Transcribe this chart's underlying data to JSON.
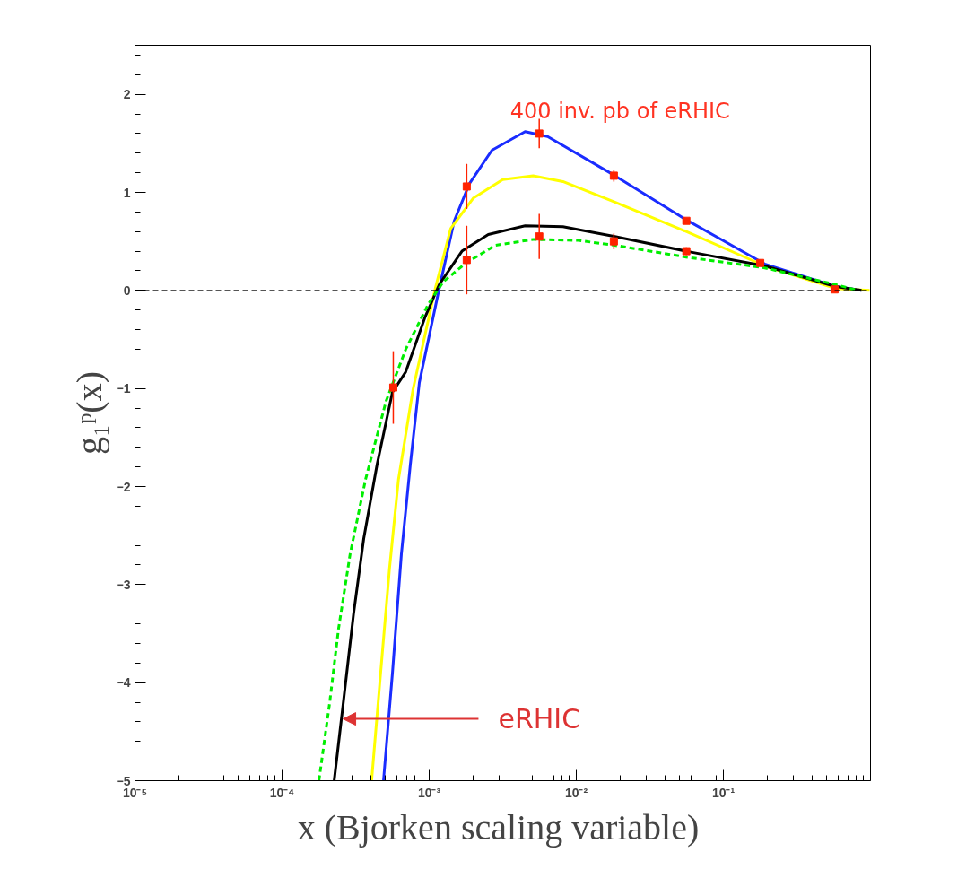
{
  "chart_data": {
    "type": "line",
    "log": "x",
    "xlabel": "x  (Bjorken scaling variable)",
    "ylabel": "g₁ᵖ(x)",
    "xlim": [
      1e-05,
      1
    ],
    "ylim": [
      -5,
      2.5
    ],
    "xticks": [
      {
        "value": 1e-05,
        "label": "10⁻⁵"
      },
      {
        "value": 0.0001,
        "label": "10⁻⁴"
      },
      {
        "value": 0.001,
        "label": "10⁻³"
      },
      {
        "value": 0.01,
        "label": "10⁻²"
      },
      {
        "value": 0.1,
        "label": "10⁻¹"
      }
    ],
    "yticks": [
      -5,
      -4,
      -3,
      -2,
      -1,
      0,
      1,
      2
    ],
    "grid": false,
    "ref_lines": [
      {
        "axis": "y",
        "value": 0,
        "label": null,
        "color": "#000000",
        "line_style": "dashed"
      }
    ],
    "annotations": [
      "400 inv. pb of eRHIC",
      {
        "text": "eRHIC",
        "x": 0.00026,
        "y": -4.37
      }
    ],
    "series": [
      {
        "color": "#1a2cff",
        "line_style": "solid",
        "x": [
          0.000489,
          0.000562,
          0.000647,
          0.000745,
          0.000857,
          0.00117,
          0.00148,
          0.00188,
          0.00267,
          0.00449,
          0.00638,
          0.0183,
          0.0559,
          0.191,
          0.578,
          0.869
        ],
        "values": [
          -5.0,
          -3.91,
          -2.69,
          -1.77,
          -0.94,
          0.02,
          0.71,
          1.09,
          1.43,
          1.62,
          1.57,
          1.17,
          0.72,
          0.27,
          0.04,
          0.0
        ]
      },
      {
        "color": "#ffff00",
        "line_style": "solid",
        "x": [
          0.000406,
          0.000467,
          0.000537,
          0.000618,
          0.000776,
          0.0011,
          0.0014,
          0.00199,
          0.00316,
          0.00509,
          0.00811,
          0.0183,
          0.0559,
          0.191,
          0.578,
          0.986
        ],
        "values": [
          -5.0,
          -3.91,
          -2.84,
          -1.93,
          -1.01,
          0.02,
          0.63,
          0.94,
          1.13,
          1.17,
          1.11,
          0.9,
          0.6,
          0.25,
          0.02,
          0.0
        ]
      },
      {
        "color": "#000000",
        "line_style": "solid",
        "x": [
          0.000226,
          0.00026,
          0.000306,
          0.000359,
          0.000443,
          0.000562,
          0.000693,
          0.000933,
          0.00117,
          0.00167,
          0.00252,
          0.00449,
          0.00811,
          0.0183,
          0.0559,
          0.191,
          0.578,
          0.869
        ],
        "values": [
          -5.0,
          -4.22,
          -3.3,
          -2.53,
          -1.77,
          -1.04,
          -0.83,
          -0.28,
          0.06,
          0.4,
          0.57,
          0.66,
          0.65,
          0.55,
          0.4,
          0.25,
          0.04,
          0.0
        ]
      },
      {
        "color": "#00ee00",
        "line_style": "dashed",
        "x": [
          0.000178,
          0.00021,
          0.000242,
          0.00029,
          0.000369,
          0.000509,
          0.000693,
          0.000986,
          0.00125,
          0.00178,
          0.00282,
          0.00509,
          0.0103,
          0.0183,
          0.0559,
          0.191,
          0.578,
          0.822
        ],
        "values": [
          -5.0,
          -4.22,
          -3.45,
          -2.69,
          -1.93,
          -1.13,
          -0.6,
          -0.14,
          0.09,
          0.28,
          0.46,
          0.52,
          0.51,
          0.46,
          0.34,
          0.23,
          0.06,
          0.0
        ]
      },
      {
        "type": "scatter",
        "color": "#ff2200",
        "marker": "square",
        "x": [
          0.00057,
          0.0018,
          0.0018,
          0.0056,
          0.0056,
          0.018,
          0.018,
          0.056,
          0.056,
          0.178,
          0.57
        ],
        "values": [
          -0.99,
          1.06,
          0.31,
          1.6,
          0.55,
          1.17,
          0.5,
          0.71,
          0.4,
          0.28,
          0.01
        ],
        "errors": [
          0.37,
          0.23,
          0.35,
          0.15,
          0.23,
          0.06,
          0.08,
          0.03,
          0.04,
          0.02,
          0.02
        ]
      }
    ]
  }
}
